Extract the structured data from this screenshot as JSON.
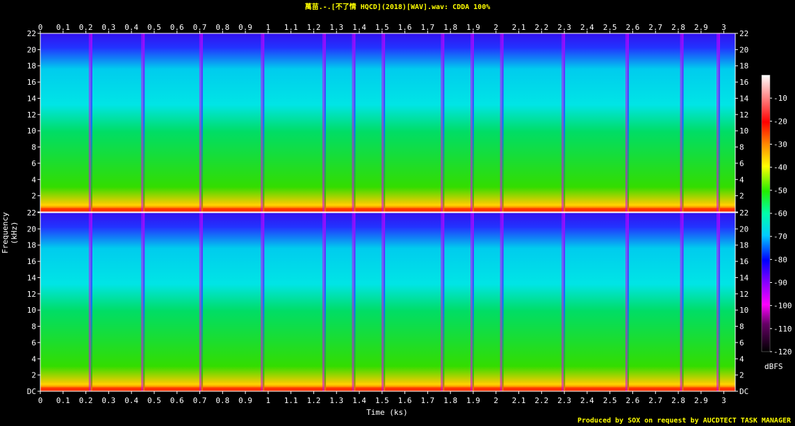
{
  "title": "萬苗.-.[不了情 HQCD](2018)[WAV].wav: CDDA 100%",
  "footer": "Produced by SOX on request by AUCDTECT TASK MANAGER",
  "chart_data": {
    "type": "heatmap",
    "title": "萬苗.-.[不了情 HQCD](2018)[WAV].wav: CDDA 100%",
    "xlabel": "Time (ks)",
    "ylabel": "Frequency (kHz)",
    "xlim": [
      0,
      3.05
    ],
    "ylim": [
      0,
      22
    ],
    "x_ticks": [
      "0",
      "0.1",
      "0.2",
      "0.3",
      "0.4",
      "0.5",
      "0.6",
      "0.7",
      "0.8",
      "0.9",
      "1",
      "1.1",
      "1.2",
      "1.3",
      "1.4",
      "1.5",
      "1.6",
      "1.7",
      "1.8",
      "1.9",
      "2",
      "2.1",
      "2.2",
      "2.3",
      "2.4",
      "2.5",
      "2.6",
      "2.7",
      "2.8",
      "2.9",
      "3"
    ],
    "y_ticks": [
      "DC",
      "2",
      "4",
      "6",
      "8",
      "10",
      "12",
      "14",
      "16",
      "18",
      "20",
      "22"
    ],
    "channels": 2,
    "colorbar": {
      "label": "dBFS",
      "ticks": [
        "-10",
        "-20",
        "-30",
        "-40",
        "-50",
        "-60",
        "-70",
        "-80",
        "-90",
        "-100",
        "-110",
        "-120"
      ],
      "range": [
        -120,
        0
      ]
    },
    "track_boundaries_ks": [
      0.225,
      0.455,
      0.71,
      0.98,
      1.25,
      1.38,
      1.51,
      1.77,
      1.9,
      2.03,
      2.3,
      2.58,
      2.82,
      2.98
    ]
  }
}
